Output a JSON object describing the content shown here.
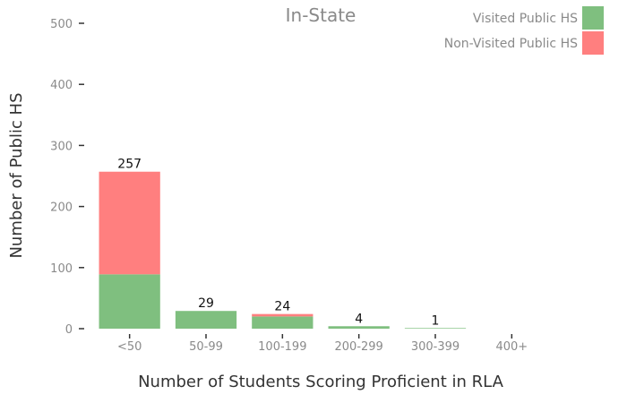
{
  "chart_data": {
    "type": "bar",
    "stacked": true,
    "title": "In-State",
    "xlabel": "Number of Students Scoring Proficient in RLA",
    "ylabel": "Number of Public HS",
    "categories": [
      "<50",
      "50-99",
      "100-199",
      "200-299",
      "300-399",
      "400+"
    ],
    "ylim": [
      0,
      500
    ],
    "yticks": [
      0,
      100,
      200,
      300,
      400,
      500
    ],
    "grid": false,
    "legend_position": "top-right",
    "series": [
      {
        "name": "Visited Public HS",
        "color": "#7fbf7f",
        "values": [
          89,
          29,
          20,
          4,
          1,
          0
        ]
      },
      {
        "name": "Non-Visited Public HS",
        "color": "#ff7f7f",
        "values": [
          168,
          0,
          4,
          0,
          0,
          0
        ]
      }
    ],
    "totals": [
      257,
      29,
      24,
      4,
      1,
      null
    ],
    "total_labels": [
      "257",
      "29",
      "24",
      "4",
      "1",
      ""
    ]
  }
}
